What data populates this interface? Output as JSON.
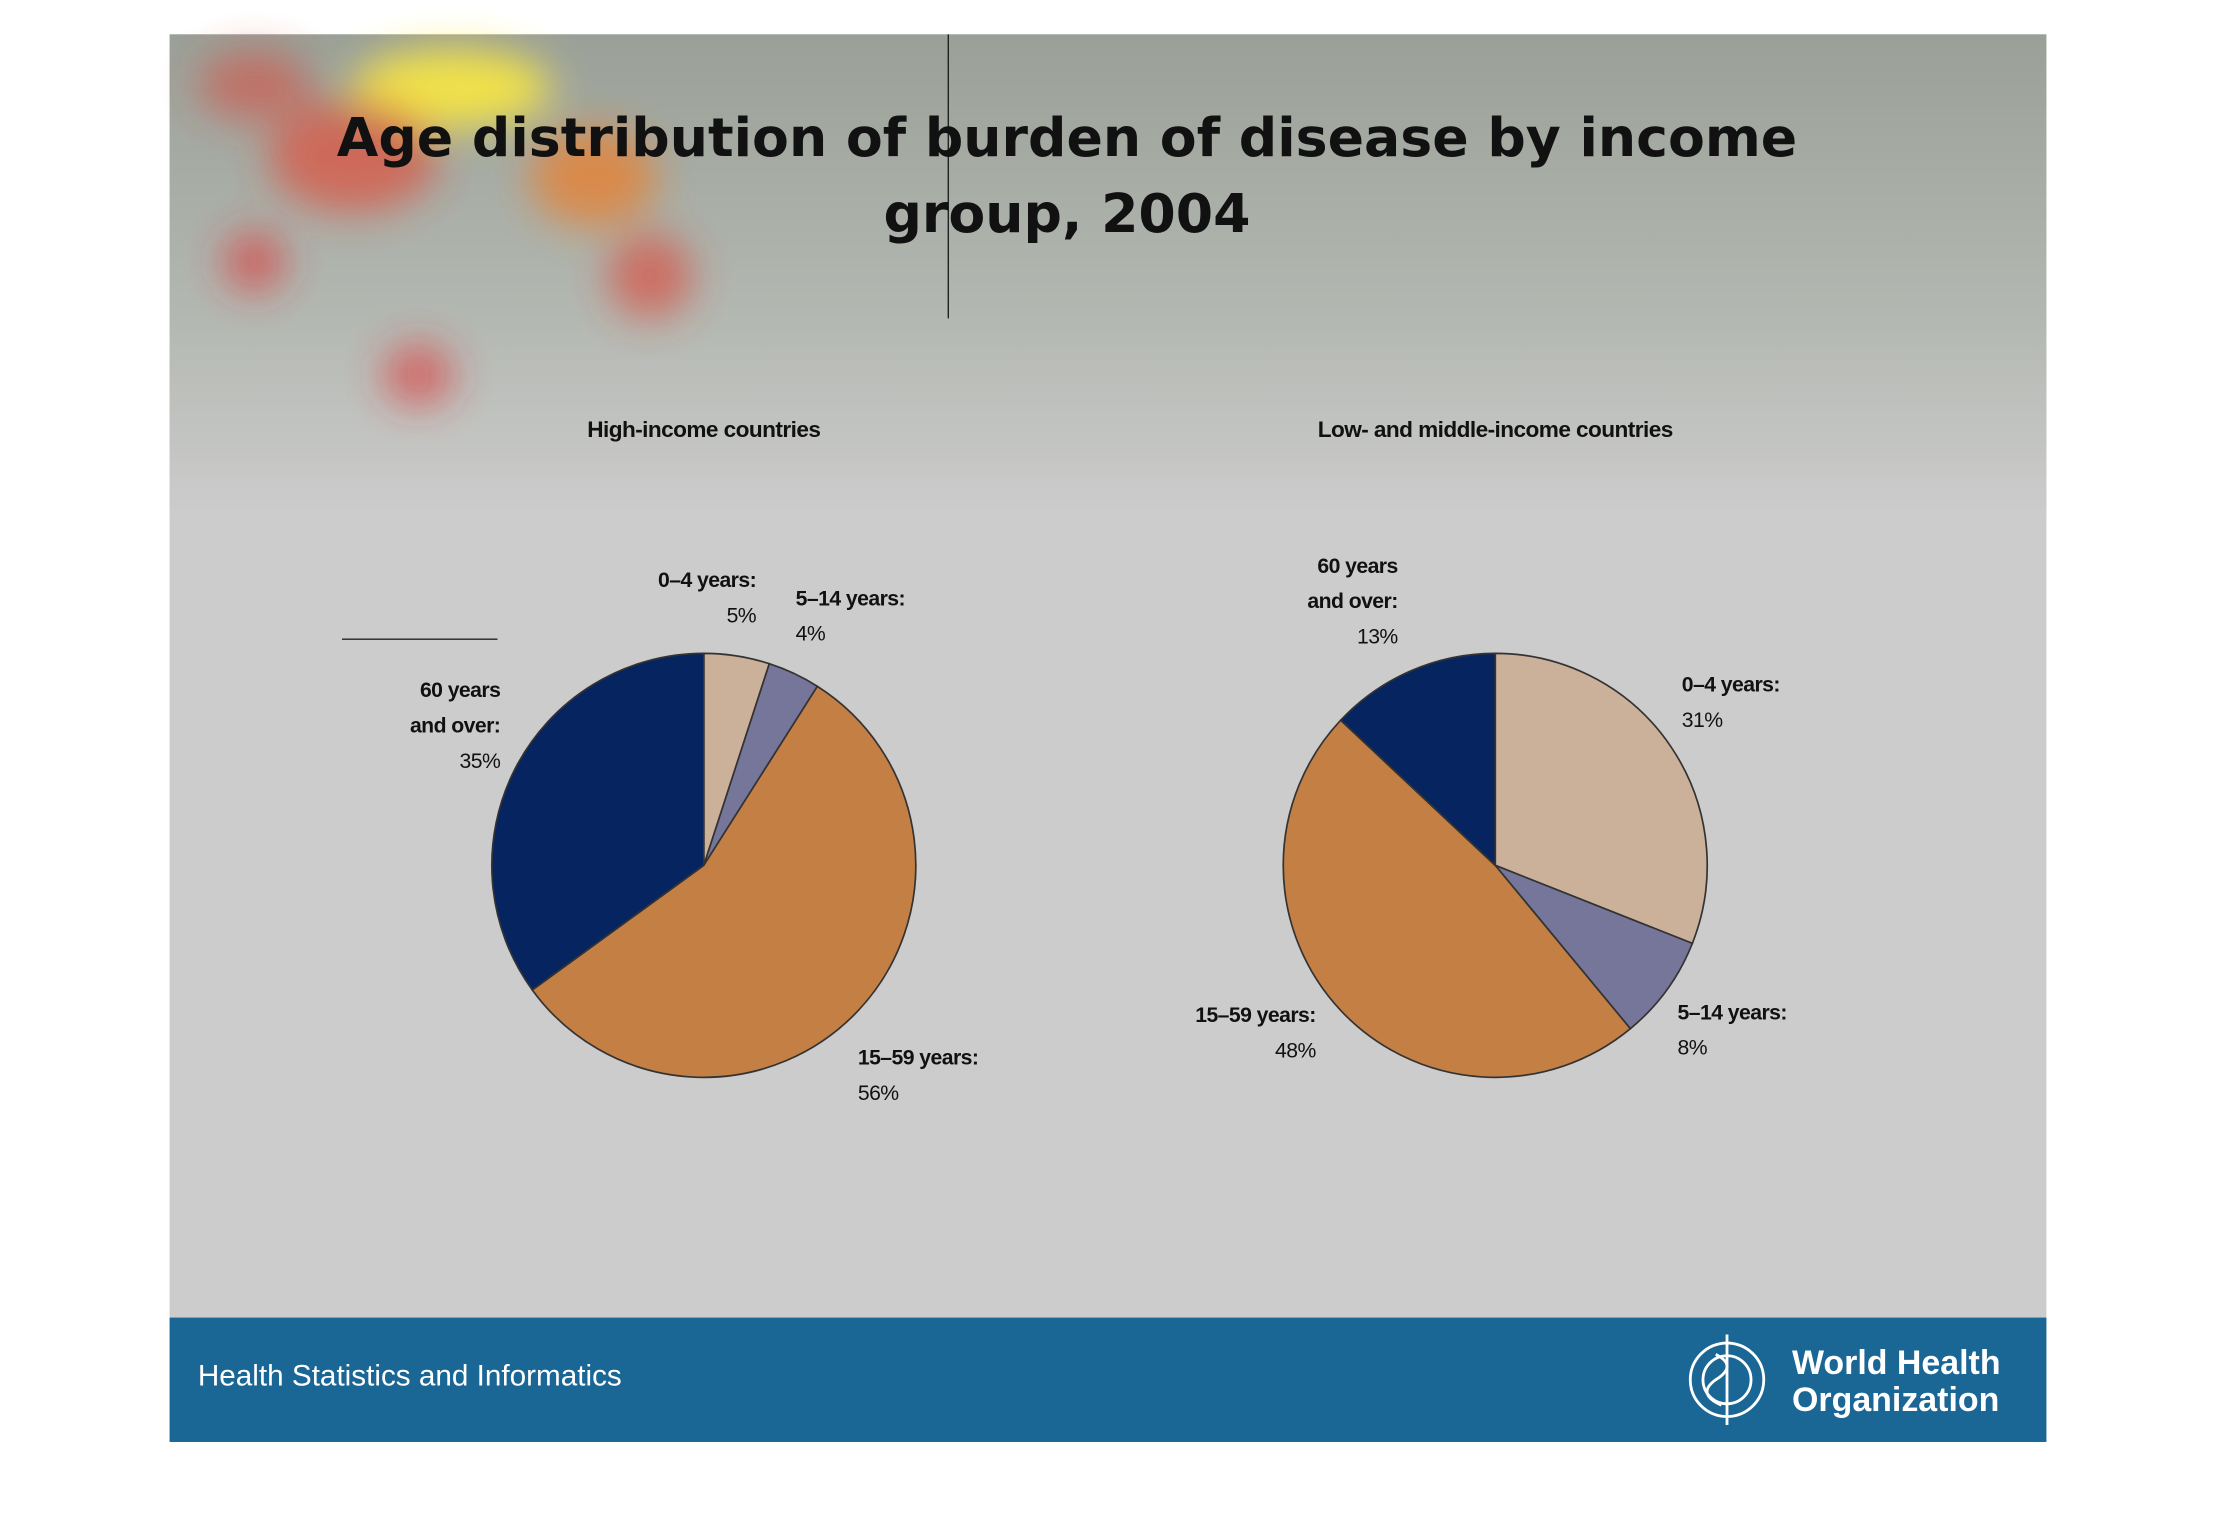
{
  "header": {
    "title": "Age distribution of burden of disease by income\ngroup, 2004"
  },
  "chart_data": [
    {
      "type": "pie",
      "title": "High-income countries",
      "categories": [
        "0–4 years:",
        "5–14 years:",
        "15–59 years:",
        "60 years\nand over:"
      ],
      "values": [
        5,
        4,
        56,
        35
      ],
      "value_labels": [
        "5%",
        "4%",
        "56%",
        "35%"
      ],
      "colors": [
        "#cbb09a",
        "#76769a",
        "#c47f45",
        "#062460"
      ]
    },
    {
      "type": "pie",
      "title": "Low- and middle-income countries",
      "categories": [
        "0–4 years:",
        "5–14 years:",
        "15–59 years:",
        "60 years\nand over:"
      ],
      "values": [
        31,
        8,
        48,
        13
      ],
      "value_labels": [
        "31%",
        "8%",
        "48%",
        "13%"
      ],
      "colors": [
        "#cbb09a",
        "#76769a",
        "#c47f45",
        "#062460"
      ]
    }
  ],
  "footer": {
    "text": "Health Statistics and Informatics",
    "logo_text": "World Health\nOrganization"
  }
}
